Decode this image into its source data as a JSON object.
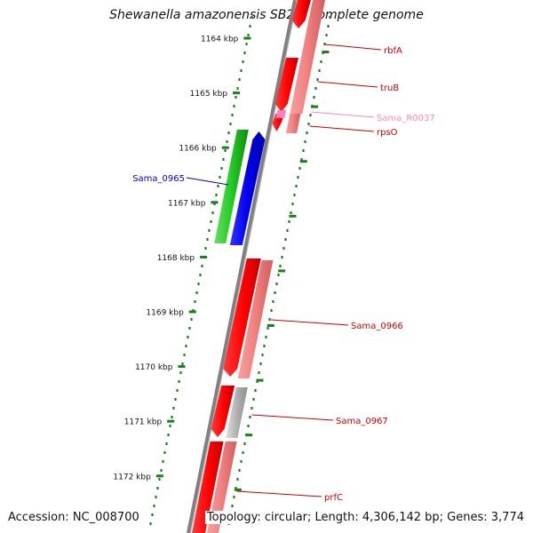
{
  "title": "Shewanella amazonensis SB2B, complete genome",
  "accession_text": "Accession: NC_008700",
  "summary_text": "Topology: circular; Length: 4,306,142 bp; Genes: 3,774",
  "ruler_unit": "kbp",
  "ruler_ticks": [
    1164,
    1165,
    1166,
    1167,
    1168,
    1169,
    1170,
    1171,
    1172
  ],
  "colors": {
    "cds_forward": "#ff0000",
    "cds_light": "#f08080",
    "rna_pink": "#ff80c0",
    "rna_pseudo": "#b0b0b0",
    "green_feature": "#22cc22",
    "blue_feature": "#0000ee",
    "backbone": "#808080",
    "ticks": "#1a7f1a"
  },
  "genes": [
    {
      "name": "rbfA",
      "label_color": "#cc0000"
    },
    {
      "name": "truB",
      "label_color": "#cc0000"
    },
    {
      "name": "Sama_R0037",
      "label_color": "#ff88bb"
    },
    {
      "name": "rpsO",
      "label_color": "#cc0000"
    },
    {
      "name": "Sama_0965",
      "label_color": "#0000cc"
    },
    {
      "name": "Sama_0966",
      "label_color": "#cc0000"
    },
    {
      "name": "Sama_0967",
      "label_color": "#cc0000"
    },
    {
      "name": "prfC",
      "label_color": "#cc0000"
    }
  ]
}
